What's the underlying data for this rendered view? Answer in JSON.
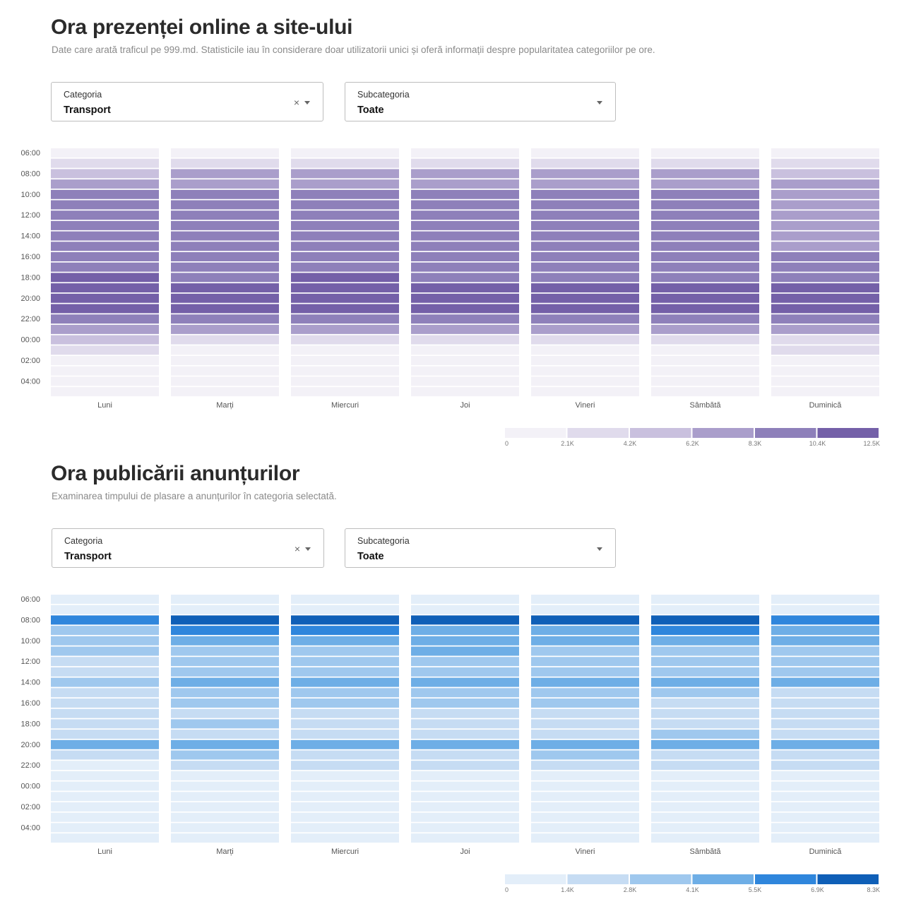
{
  "sections": [
    {
      "title": "Ora prezenței online a site-ului",
      "subtitle": "Date care arată traficul pe 999.md. Statisticile iau în considerare doar utilizatorii unici și oferă informații despre popularitatea categoriilor pe ore.",
      "category_filter": {
        "label": "Categoria",
        "value": "Transport",
        "clear_icon": "clear-icon",
        "dropdown_icon": "chevron-down-icon"
      },
      "subcategory_filter": {
        "label": "Subcategoria",
        "value": "Toate",
        "dropdown_icon": "chevron-down-icon"
      }
    },
    {
      "title": "Ora publicării anunțurilor",
      "subtitle": "Examinarea timpului de plasare a anunțurilor în categoria selectată.",
      "category_filter": {
        "label": "Categoria",
        "value": "Transport",
        "clear_icon": "clear-icon",
        "dropdown_icon": "chevron-down-icon"
      },
      "subcategory_filter": {
        "label": "Subcategoria",
        "value": "Toate",
        "dropdown_icon": "chevron-down-icon"
      }
    }
  ],
  "chart_data": [
    {
      "type": "heatmap",
      "title": "Ora prezenței online a site-ului",
      "days": [
        "Luni",
        "Marți",
        "Miercuri",
        "Joi",
        "Vineri",
        "Sâmbătă",
        "Duminică"
      ],
      "hours": [
        "06:00",
        "07:00",
        "08:00",
        "09:00",
        "10:00",
        "11:00",
        "12:00",
        "13:00",
        "14:00",
        "15:00",
        "16:00",
        "17:00",
        "18:00",
        "19:00",
        "20:00",
        "21:00",
        "22:00",
        "23:00",
        "00:00",
        "01:00",
        "02:00",
        "03:00",
        "04:00",
        "05:00"
      ],
      "hour_tick_labels": [
        "06:00",
        "08:00",
        "10:00",
        "12:00",
        "14:00",
        "16:00",
        "18:00",
        "20:00",
        "22:00",
        "00:00",
        "02:00",
        "04:00"
      ],
      "legend_ticks": [
        "0",
        "2.1K",
        "4.2K",
        "6.2K",
        "8.3K",
        "10.4K",
        "12.5K"
      ],
      "legend_colors": [
        "#f3f1f7",
        "#e0dbec",
        "#c9c0de",
        "#aa9ecb",
        "#8e80ba",
        "#7460a8"
      ],
      "bin_levels_by_day": [
        [
          0,
          1,
          2,
          3,
          4,
          4,
          4,
          4,
          4,
          4,
          4,
          4,
          5,
          5,
          5,
          5,
          4,
          3,
          2,
          1,
          0,
          0,
          0,
          0
        ],
        [
          0,
          1,
          3,
          3,
          4,
          4,
          4,
          4,
          4,
          4,
          4,
          4,
          4,
          5,
          5,
          5,
          4,
          3,
          1,
          0,
          0,
          0,
          0,
          0
        ],
        [
          0,
          1,
          3,
          3,
          4,
          4,
          4,
          4,
          4,
          4,
          4,
          4,
          5,
          5,
          5,
          5,
          4,
          3,
          1,
          0,
          0,
          0,
          0,
          0
        ],
        [
          0,
          1,
          3,
          3,
          4,
          4,
          4,
          4,
          4,
          4,
          4,
          4,
          4,
          5,
          5,
          5,
          4,
          3,
          1,
          0,
          0,
          0,
          0,
          0
        ],
        [
          0,
          1,
          3,
          3,
          4,
          4,
          4,
          4,
          4,
          4,
          4,
          4,
          4,
          5,
          5,
          5,
          4,
          3,
          1,
          0,
          0,
          0,
          0,
          0
        ],
        [
          0,
          1,
          3,
          3,
          4,
          4,
          4,
          4,
          4,
          4,
          4,
          4,
          4,
          5,
          5,
          5,
          4,
          3,
          1,
          0,
          0,
          0,
          0,
          0
        ],
        [
          0,
          1,
          2,
          3,
          3,
          3,
          3,
          3,
          3,
          3,
          4,
          4,
          4,
          5,
          5,
          5,
          4,
          3,
          1,
          1,
          0,
          0,
          0,
          0
        ]
      ]
    },
    {
      "type": "heatmap",
      "title": "Ora publicării anunțurilor",
      "days": [
        "Luni",
        "Marți",
        "Miercuri",
        "Joi",
        "Vineri",
        "Sâmbătă",
        "Duminică"
      ],
      "hours": [
        "06:00",
        "07:00",
        "08:00",
        "09:00",
        "10:00",
        "11:00",
        "12:00",
        "13:00",
        "14:00",
        "15:00",
        "16:00",
        "17:00",
        "18:00",
        "19:00",
        "20:00",
        "21:00",
        "22:00",
        "23:00",
        "00:00",
        "01:00",
        "02:00",
        "03:00",
        "04:00",
        "05:00"
      ],
      "hour_tick_labels": [
        "06:00",
        "08:00",
        "10:00",
        "12:00",
        "14:00",
        "16:00",
        "18:00",
        "20:00",
        "22:00",
        "00:00",
        "02:00",
        "04:00"
      ],
      "legend_ticks": [
        "0",
        "1.4K",
        "2.8K",
        "4.1K",
        "5.5K",
        "6.9K",
        "8.3K"
      ],
      "legend_colors": [
        "#e3eef9",
        "#c6dcf3",
        "#9fc8ee",
        "#6eaee6",
        "#2f86dc",
        "#0f5fb7"
      ],
      "bin_levels_by_day": [
        [
          0,
          0,
          4,
          2,
          2,
          2,
          1,
          1,
          2,
          1,
          1,
          1,
          1,
          1,
          3,
          1,
          0,
          0,
          0,
          0,
          0,
          0,
          0,
          0
        ],
        [
          0,
          0,
          5,
          4,
          3,
          2,
          2,
          2,
          3,
          2,
          2,
          1,
          2,
          1,
          3,
          2,
          1,
          0,
          0,
          0,
          0,
          0,
          0,
          0
        ],
        [
          0,
          0,
          5,
          4,
          3,
          2,
          2,
          2,
          3,
          2,
          2,
          1,
          1,
          1,
          3,
          1,
          1,
          0,
          0,
          0,
          0,
          0,
          0,
          0
        ],
        [
          0,
          0,
          5,
          3,
          3,
          3,
          2,
          2,
          3,
          2,
          2,
          1,
          1,
          1,
          3,
          1,
          1,
          0,
          0,
          0,
          0,
          0,
          0,
          0
        ],
        [
          0,
          0,
          5,
          3,
          3,
          2,
          2,
          2,
          3,
          2,
          2,
          1,
          1,
          1,
          3,
          2,
          1,
          0,
          0,
          0,
          0,
          0,
          0,
          0
        ],
        [
          0,
          0,
          5,
          4,
          3,
          2,
          2,
          2,
          3,
          2,
          1,
          1,
          1,
          2,
          3,
          1,
          1,
          0,
          0,
          0,
          0,
          0,
          0,
          0
        ],
        [
          0,
          0,
          4,
          3,
          3,
          2,
          2,
          2,
          3,
          1,
          1,
          1,
          1,
          1,
          3,
          1,
          1,
          0,
          0,
          0,
          0,
          0,
          0,
          0
        ]
      ]
    }
  ]
}
